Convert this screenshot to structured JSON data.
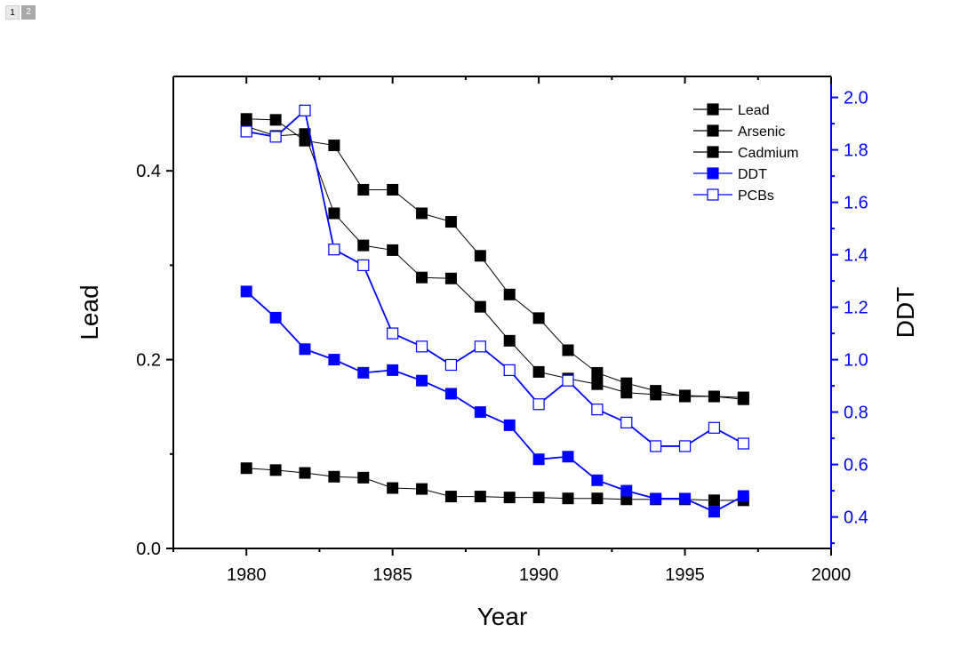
{
  "page_tabs": [
    {
      "label": "1",
      "active": true
    },
    {
      "label": "2",
      "active": false
    }
  ],
  "colors": {
    "black": "#000000",
    "blue": "#0000ff"
  },
  "chart_data": {
    "type": "line",
    "title": "",
    "xlabel": "Year",
    "ylabel": "Lead",
    "y2label": "DDT",
    "xlim": [
      1977.5,
      2000
    ],
    "ylim": [
      0,
      0.5
    ],
    "y2lim": [
      0.28,
      2.08
    ],
    "x_ticks": [
      1980,
      1985,
      1990,
      1995,
      2000
    ],
    "x_tick_labels": [
      "1980",
      "1985",
      "1990",
      "1995",
      "2000"
    ],
    "y_ticks": [
      0.0,
      0.2,
      0.4
    ],
    "y_tick_labels": [
      "0.0",
      "0.2",
      "0.4"
    ],
    "y2_ticks": [
      0.4,
      0.6,
      0.8,
      1.0,
      1.2,
      1.4,
      1.6,
      1.8,
      2.0
    ],
    "y2_tick_labels": [
      "0.4",
      "0.6",
      "0.8",
      "1.0",
      "1.2",
      "1.4",
      "1.6",
      "1.8",
      "2.0"
    ],
    "legend_position": "top-right",
    "x": [
      1980,
      1981,
      1982,
      1983,
      1984,
      1985,
      1986,
      1987,
      1988,
      1989,
      1990,
      1991,
      1992,
      1993,
      1994,
      1995,
      1996,
      1997
    ],
    "series": [
      {
        "name": "Lead",
        "axis": "left",
        "color": "#000000",
        "marker": "filled-square",
        "values": [
          0.455,
          0.454,
          0.432,
          0.427,
          0.38,
          0.38,
          0.355,
          0.346,
          0.31,
          0.269,
          0.244,
          0.21,
          0.186,
          0.175,
          0.167,
          0.161,
          0.161,
          0.16
        ]
      },
      {
        "name": "Arsenic",
        "axis": "left",
        "color": "#000000",
        "marker": "filled-square",
        "values": [
          0.447,
          0.437,
          0.439,
          0.355,
          0.321,
          0.316,
          0.287,
          0.286,
          0.256,
          0.22,
          0.187,
          0.18,
          0.174,
          0.165,
          0.163,
          0.162,
          0.161,
          0.158
        ]
      },
      {
        "name": "Cadmium",
        "axis": "left",
        "color": "#000000",
        "marker": "filled-square",
        "values": [
          0.085,
          0.083,
          0.08,
          0.076,
          0.075,
          0.064,
          0.063,
          0.055,
          0.055,
          0.054,
          0.054,
          0.053,
          0.053,
          0.052,
          0.052,
          0.052,
          0.051,
          0.051
        ]
      },
      {
        "name": "DDT",
        "axis": "right",
        "color": "#0000ff",
        "marker": "filled-square",
        "values": [
          1.26,
          1.16,
          1.04,
          1.0,
          0.95,
          0.96,
          0.92,
          0.87,
          0.8,
          0.75,
          0.62,
          0.63,
          0.54,
          0.5,
          0.47,
          0.47,
          0.42,
          0.48
        ]
      },
      {
        "name": "PCBs",
        "axis": "right",
        "color": "#0000ff",
        "marker": "open-square",
        "values": [
          1.87,
          1.85,
          1.95,
          1.42,
          1.36,
          1.1,
          1.05,
          0.98,
          1.05,
          0.96,
          0.83,
          0.92,
          0.81,
          0.76,
          0.67,
          0.67,
          0.74,
          0.68
        ]
      }
    ]
  }
}
